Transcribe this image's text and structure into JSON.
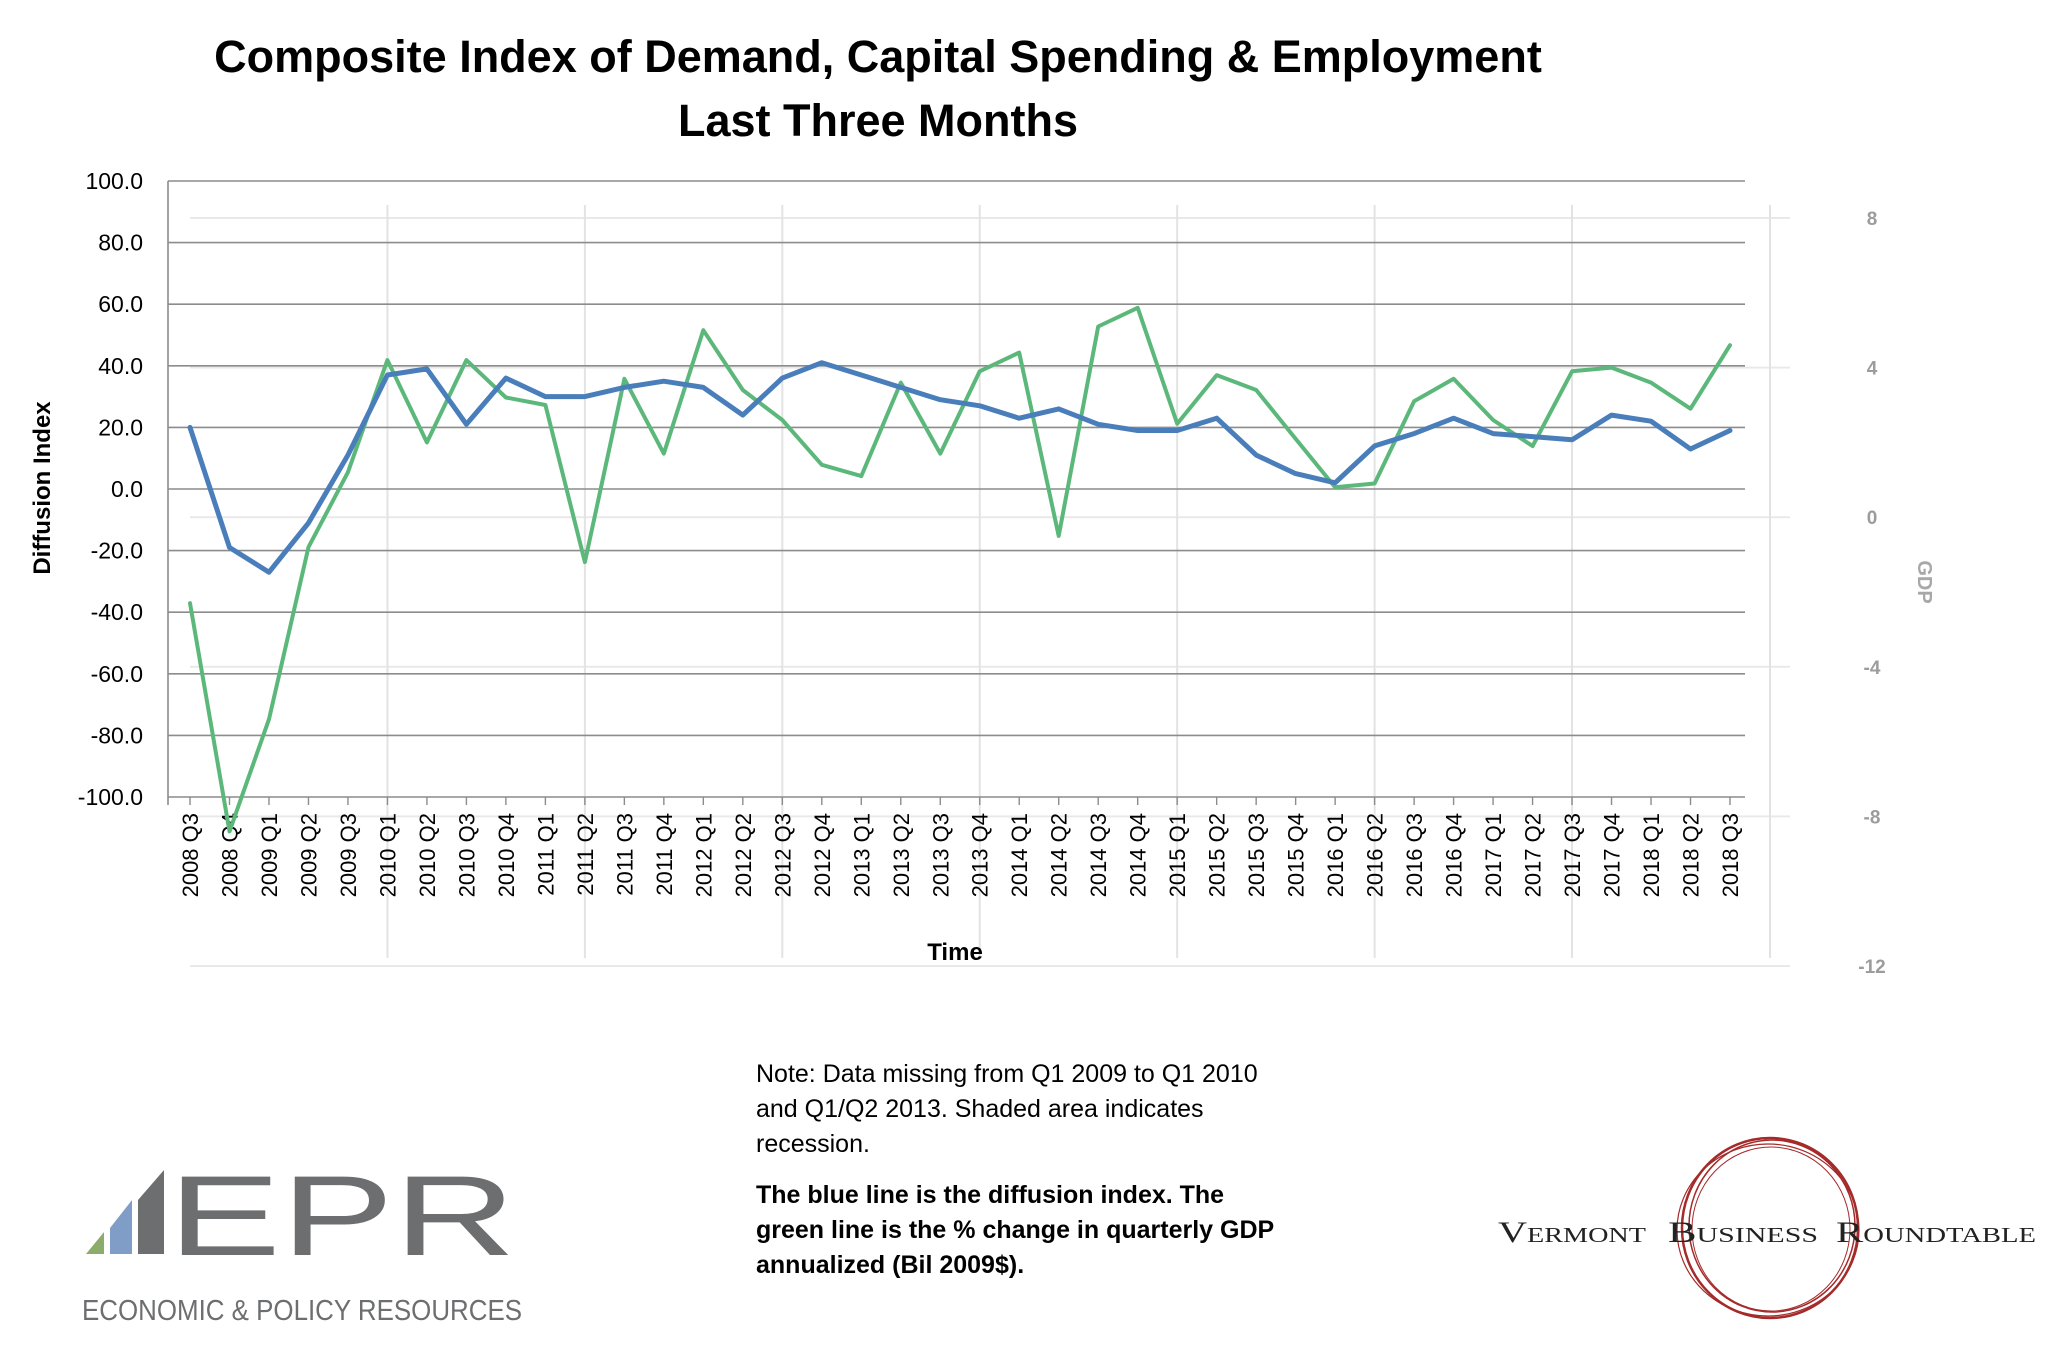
{
  "chart_data": {
    "type": "line",
    "title": [
      "Composite Index of Demand, Capital Spending & Employment",
      "Last Three Months"
    ],
    "xlabel": "Time",
    "ylabel": "Diffusion Index",
    "y2label": "GDP",
    "ylim": [
      -100,
      100
    ],
    "yticks": [
      "100.0",
      "80.0",
      "60.0",
      "40.0",
      "20.0",
      "0.0",
      "-20.0",
      "-40.0",
      "-60.0",
      "-80.0",
      "-100.0"
    ],
    "y2lim": [
      -12,
      8
    ],
    "y2ticks": [
      "8",
      "4",
      "0",
      "-4",
      "-8",
      "-12"
    ],
    "grid": true,
    "categories": [
      "2008 Q3",
      "2008 Q4",
      "2009 Q1",
      "2009 Q2",
      "2009 Q3",
      "2010 Q1",
      "2010 Q2",
      "2010 Q3",
      "2010 Q4",
      "2011 Q1",
      "2011 Q2",
      "2011 Q3",
      "2011 Q4",
      "2012 Q1",
      "2012 Q2",
      "2012 Q3",
      "2012 Q4",
      "2013 Q1",
      "2013 Q2",
      "2013 Q3",
      "2013 Q4",
      "2014 Q1",
      "2014 Q2",
      "2014 Q3",
      "2014 Q4",
      "2015 Q1",
      "2015 Q2",
      "2015 Q3",
      "2015 Q4",
      "2016 Q1",
      "2016 Q2",
      "2016 Q3",
      "2016 Q4",
      "2017 Q1",
      "2017 Q2",
      "2017 Q3",
      "2017 Q4",
      "2018 Q1",
      "2018 Q2",
      "2018 Q3"
    ],
    "series": [
      {
        "color": "#4a7ebb",
        "axis": "left",
        "values": [
          20,
          -19,
          -27,
          -11,
          11,
          37,
          39,
          21,
          36,
          30,
          30,
          33,
          35,
          33,
          24,
          36,
          41,
          37,
          33,
          29,
          27,
          23,
          26,
          21,
          19,
          19,
          23,
          11,
          5,
          2,
          14,
          18,
          23,
          18,
          17,
          16,
          24,
          22,
          13,
          19
        ]
      },
      {
        "color": "#5cb87a",
        "axis": "right",
        "values": [
          -2.3,
          -8.4,
          -5.4,
          -0.8,
          1.2,
          4.2,
          2.0,
          4.2,
          3.2,
          3.0,
          -1.2,
          3.7,
          1.7,
          5.0,
          3.4,
          2.6,
          1.4,
          1.1,
          3.6,
          1.7,
          3.9,
          4.4,
          -0.5,
          5.1,
          5.6,
          2.5,
          3.8,
          3.4,
          2.1,
          0.8,
          0.9,
          3.1,
          3.7,
          2.6,
          1.9,
          3.9,
          4.0,
          3.6,
          2.9,
          4.6
        ]
      }
    ]
  },
  "note": {
    "line1": "Note:  Data missing from  Q1 2009 to Q1 2010 and Q1/Q2 2013. Shaded area indicates  recession.",
    "line2": "The blue line is the diffusion index.  The green line is the % change in quarterly GDP annualized (Bil 2009$)."
  },
  "logos": {
    "epr_mark": "EPR",
    "epr_name": "ECONOMIC & POLICY RESOURCES",
    "vbr_left": "Vermont",
    "vbr_middle": "Business",
    "vbr_right": "Roundtable"
  },
  "colors": {
    "blue_line": "#4a7ebb",
    "green_line": "#5cb87a",
    "grid": "#8c8c8c",
    "epr_gray": "#6d6e70",
    "vbr_red": "#a52a2a"
  }
}
